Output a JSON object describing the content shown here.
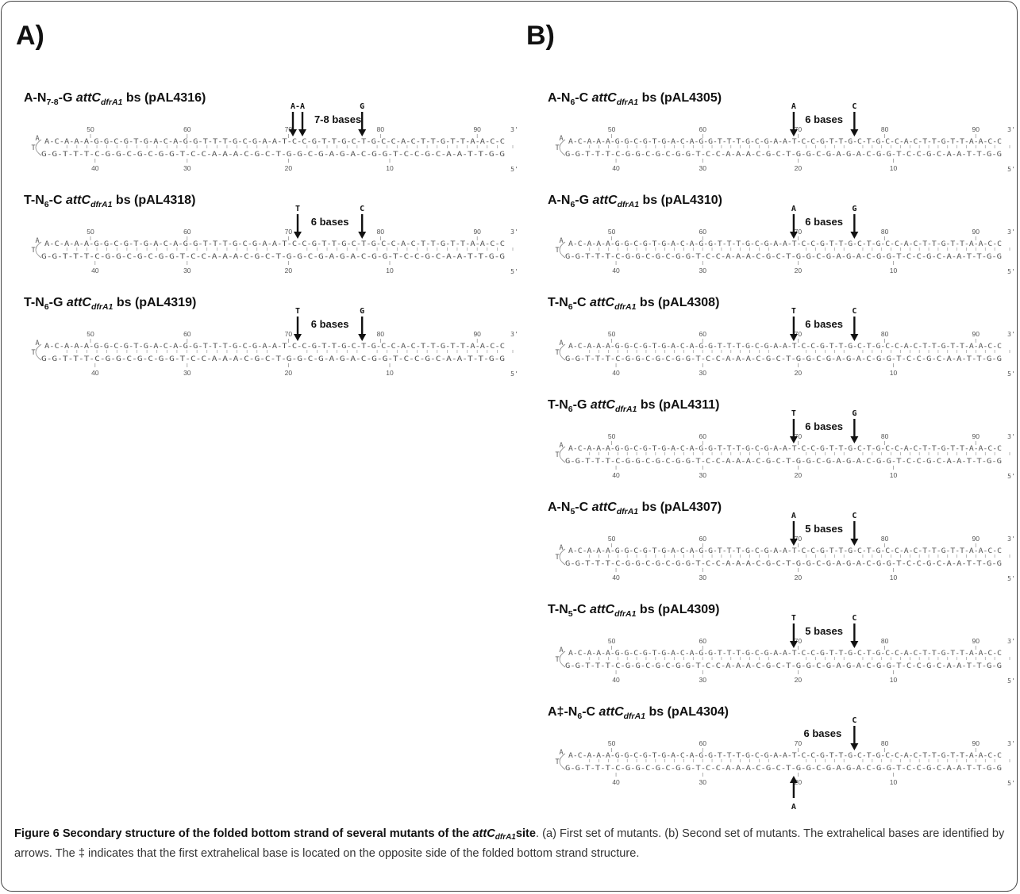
{
  "panels": [
    {
      "id": "A",
      "label": "A)"
    },
    {
      "id": "B",
      "label": "B)"
    }
  ],
  "attc_text": "attC",
  "attc_sub": "dfrA1",
  "bases_suffix": "bases",
  "strand_top": "A-C-A-A-A-G-G-C-G-T-G-A-C-A-G-G-T-T-T-G-C-G-A-A-T-C-C-G-T-T-G-C-T-G-C-C-A-C-T-T-G-T-T-A-A-C-C",
  "strand_bottom": "G-G-T-T-T-C-G-G-C-G-C-G-G-T-C-C-A-A-A-C-G-C-T-G-G-C-G-A-G-A-C-G-G-T-C-C-G-C-A-A-T-T-G-G",
  "loop_bases": [
    "A",
    "T"
  ],
  "top_numbers": [
    "50",
    "60",
    "70",
    "80",
    "90"
  ],
  "bottom_numbers": [
    "40",
    "30",
    "20",
    "10"
  ],
  "end_3": "3'",
  "end_5": "5'",
  "mutants": [
    {
      "panel": "A",
      "prefix": "A-N",
      "n": "7-8",
      "suffix": "-G",
      "plasmid": "bs (pAL4316)",
      "first_base": "A-A",
      "second_base": "G",
      "spacing": "7-8"
    },
    {
      "panel": "A",
      "prefix": "T-N",
      "n": "6",
      "suffix": "-C",
      "plasmid": "bs (pAL4318)",
      "first_base": "T",
      "second_base": "C",
      "spacing": "6"
    },
    {
      "panel": "A",
      "prefix": "T-N",
      "n": "6",
      "suffix": "-G",
      "plasmid": "bs (pAL4319)",
      "first_base": "T",
      "second_base": "G",
      "spacing": "6"
    },
    {
      "panel": "B",
      "prefix": "A-N",
      "n": "6",
      "suffix": "-C",
      "plasmid": "bs (pAL4305)",
      "first_base": "A",
      "second_base": "C",
      "spacing": "6"
    },
    {
      "panel": "B",
      "prefix": "A-N",
      "n": "6",
      "suffix": "-G",
      "plasmid": "bs (pAL4310)",
      "first_base": "A",
      "second_base": "G",
      "spacing": "6"
    },
    {
      "panel": "B",
      "prefix": "T-N",
      "n": "6",
      "suffix": "-C",
      "plasmid": "bs (pAL4308)",
      "first_base": "T",
      "second_base": "C",
      "spacing": "6"
    },
    {
      "panel": "B",
      "prefix": "T-N",
      "n": "6",
      "suffix": "-G",
      "plasmid": "bs (pAL4311)",
      "first_base": "T",
      "second_base": "G",
      "spacing": "6"
    },
    {
      "panel": "B",
      "prefix": "A-N",
      "n": "5",
      "suffix": "-C",
      "plasmid": "bs (pAL4307)",
      "first_base": "A",
      "second_base": "C",
      "spacing": "5"
    },
    {
      "panel": "B",
      "prefix": "T-N",
      "n": "5",
      "suffix": "-C",
      "plasmid": "bs (pAL4309)",
      "first_base": "T",
      "second_base": "C",
      "spacing": "5"
    },
    {
      "panel": "B",
      "prefix": "A‡-N",
      "n": "6",
      "suffix": "-C",
      "plasmid": "bs (pAL4304)",
      "first_base": "A",
      "second_base": "C",
      "spacing": "6",
      "first_base_opposite": true
    }
  ],
  "caption": {
    "label": "Figure 6",
    "title_pre": "Secondary structure of the folded bottom strand of several mutants of the ",
    "title_attc": "attC",
    "title_sub": "dfrA1",
    "title_post": "site",
    "text": ". (a) First set of mutants. (b) Second set of mutants. The extrahelical bases are identified by arrows. The ‡ indicates that the first extrahelical base is located on the opposite side of the folded bottom strand structure."
  }
}
